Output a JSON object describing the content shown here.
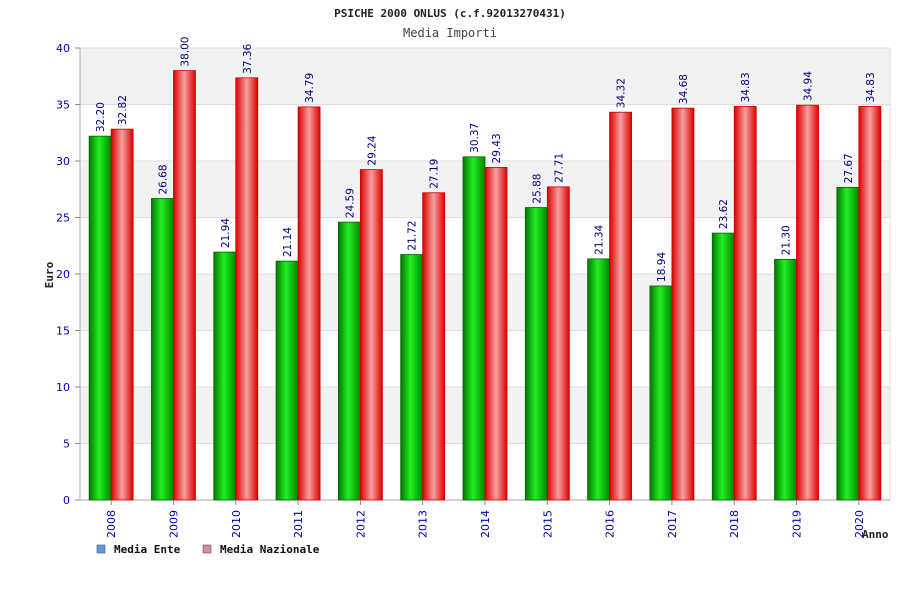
{
  "chart_data": {
    "type": "bar",
    "title": "PSICHE 2000 ONLUS (c.f.92013270431)",
    "subtitle": "Media Importi",
    "xlabel": "Anno",
    "ylabel": "Euro",
    "ylim": [
      0,
      40
    ],
    "yticks": [
      0,
      5,
      10,
      15,
      20,
      25,
      30,
      35,
      40
    ],
    "grid": true,
    "legend_position": "bottom-left",
    "categories": [
      "2008",
      "2009",
      "2010",
      "2011",
      "2012",
      "2013",
      "2014",
      "2015",
      "2016",
      "2017",
      "2018",
      "2019",
      "2020"
    ],
    "series": [
      {
        "name": "Media Ente",
        "color": "#00cc00",
        "legend_color": "#5599ee",
        "values": [
          32.2,
          26.68,
          21.94,
          21.14,
          24.59,
          21.72,
          30.37,
          25.88,
          21.34,
          18.94,
          23.62,
          21.3,
          27.67
        ],
        "labels": [
          "32.20",
          "26.68",
          "21.94",
          "21.14",
          "24.59",
          "21.72",
          "30.37",
          "25.88",
          "21.34",
          "18.94",
          "23.62",
          "21.30",
          "27.67"
        ]
      },
      {
        "name": "Media Nazionale",
        "color": "#ee1111",
        "legend_color": "#dd88aa",
        "values": [
          32.82,
          38.0,
          37.36,
          34.79,
          29.24,
          27.19,
          29.43,
          27.71,
          34.32,
          34.68,
          34.83,
          34.94,
          34.83
        ],
        "labels": [
          "32.82",
          "38.00",
          "37.36",
          "34.79",
          "29.24",
          "27.19",
          "29.43",
          "27.71",
          "34.32",
          "34.68",
          "34.83",
          "34.94",
          "34.83"
        ]
      }
    ]
  }
}
